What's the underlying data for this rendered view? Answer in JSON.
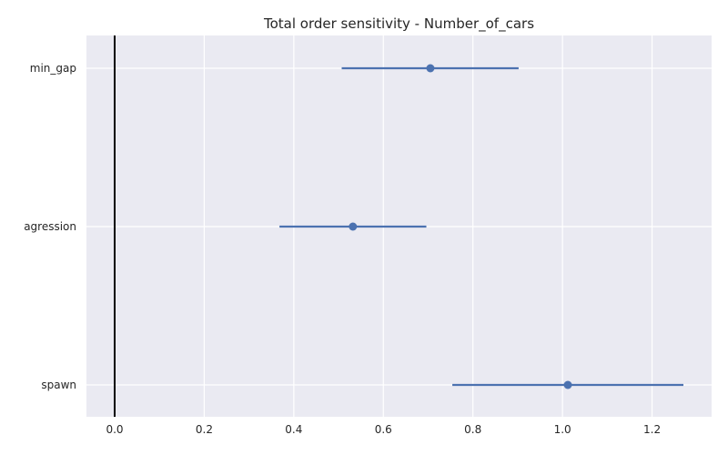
{
  "chart_data": {
    "type": "scatter",
    "title": "Total order sensitivity  -  Number_of_cars",
    "xlabel": "",
    "ylabel": "",
    "xlim": [
      -0.063,
      1.333
    ],
    "x_ticks": [
      "0.0",
      "0.2",
      "0.4",
      "0.6",
      "0.8",
      "1.0",
      "1.2"
    ],
    "x_tick_values": [
      0,
      0.2,
      0.4,
      0.6,
      0.8,
      1.0,
      1.2
    ],
    "categories": [
      "min_gap",
      "agression",
      "spawn"
    ],
    "series": [
      {
        "values": [
          0.705,
          0.532,
          1.012
        ],
        "ci_low": [
          0.507,
          0.368,
          0.754
        ],
        "ci_high": [
          0.902,
          0.696,
          1.27
        ]
      }
    ],
    "reference_line": {
      "x": 0
    },
    "grid": true,
    "legend": "none",
    "colors": {
      "plot_background": "#eaeaf2",
      "grid": "#ffffff",
      "series": "#4c72b0",
      "reference_line": "#000000"
    }
  }
}
